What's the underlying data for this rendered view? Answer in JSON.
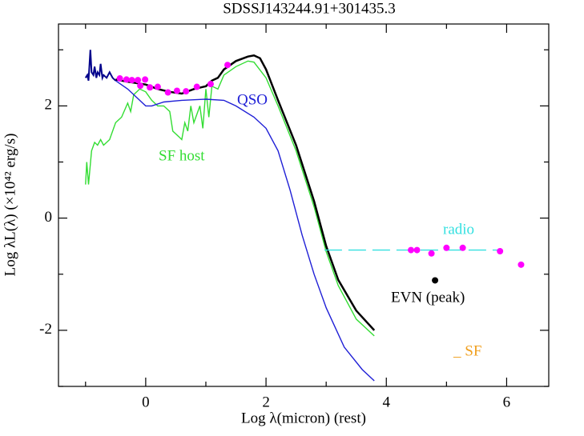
{
  "chart_data": {
    "type": "line",
    "title": "SDSSJ143244.91+301435.3",
    "x_label": "Log λ(micron) (rest)",
    "y_label": "Log λL(λ)  (×10⁴² erg/s)",
    "xlim": [
      -1.45,
      6.7
    ],
    "ylim": [
      -3.0,
      3.46
    ],
    "xticks": [
      0,
      2,
      4,
      6
    ],
    "yticks": [
      -2,
      0,
      2
    ],
    "xminorticks": [
      -1,
      1,
      3,
      5
    ],
    "yminorticks": [
      -3,
      -1,
      1,
      3
    ],
    "annotations": [
      {
        "text": "QSO",
        "color": "#1f1fd6"
      },
      {
        "text": "SF host",
        "color": "#33dd33"
      },
      {
        "text": "radio",
        "color": "#33e0e0"
      },
      {
        "text": "EVN (peak)",
        "color": "#000000"
      },
      {
        "text": "_ SF",
        "color": "#f0a020"
      }
    ],
    "series": [
      {
        "kind": "line",
        "color": "#33dd33",
        "x": [
          -1.0,
          -0.98,
          -0.95,
          -0.9,
          -0.85,
          -0.8,
          -0.75,
          -0.7,
          -0.6,
          -0.5,
          -0.4,
          -0.3,
          -0.25,
          -0.2,
          -0.1,
          0,
          0.1,
          0.2,
          0.3,
          0.4,
          0.45,
          0.55,
          0.6,
          0.65,
          0.7,
          0.75,
          0.8,
          0.9,
          0.95,
          1.0,
          1.05,
          1.1,
          1.2,
          1.3,
          1.5,
          1.7,
          1.8,
          2.0,
          2.2,
          2.5,
          2.8,
          3.0,
          3.2,
          3.5,
          3.8
        ],
        "values": [
          0.6,
          1.0,
          0.6,
          1.2,
          1.35,
          1.3,
          1.4,
          1.3,
          1.4,
          1.7,
          1.8,
          2.05,
          1.9,
          2.2,
          2.3,
          2.25,
          2.1,
          2.0,
          2.0,
          1.9,
          1.55,
          1.45,
          1.4,
          1.7,
          1.55,
          2.0,
          1.7,
          2.0,
          1.6,
          2.3,
          1.8,
          2.35,
          2.3,
          2.55,
          2.7,
          2.8,
          2.78,
          2.5,
          2.0,
          1.2,
          0.2,
          -0.6,
          -1.2,
          -1.8,
          -2.1
        ]
      },
      {
        "kind": "line",
        "color": "#1f1fd6",
        "x": [
          -0.5,
          -0.3,
          -0.1,
          0,
          0.1,
          0.3,
          0.6,
          1.0,
          1.3,
          1.5,
          1.8,
          2.0,
          2.2,
          2.4,
          2.6,
          2.8,
          3.0,
          3.3,
          3.6,
          3.8
        ],
        "values": [
          2.45,
          2.3,
          2.1,
          2.0,
          2.0,
          2.07,
          2.1,
          2.12,
          2.1,
          2.0,
          1.8,
          1.6,
          1.2,
          0.5,
          -0.3,
          -1.0,
          -1.6,
          -2.3,
          -2.7,
          -2.9
        ]
      },
      {
        "kind": "line",
        "color": "#000000",
        "width": 2.5,
        "x": [
          -0.5,
          -0.3,
          0,
          0.2,
          0.4,
          0.6,
          0.8,
          1.0,
          1.1,
          1.2,
          1.3,
          1.5,
          1.7,
          1.8,
          1.9,
          2.0,
          2.2,
          2.5,
          2.8,
          3.0,
          3.2,
          3.5,
          3.8
        ],
        "values": [
          2.47,
          2.43,
          2.38,
          2.3,
          2.25,
          2.22,
          2.3,
          2.35,
          2.45,
          2.5,
          2.65,
          2.8,
          2.88,
          2.9,
          2.85,
          2.65,
          2.1,
          1.3,
          0.3,
          -0.5,
          -1.1,
          -1.65,
          -2.0
        ]
      },
      {
        "kind": "line",
        "color": "#00008b",
        "width": 2,
        "x": [
          -1.0,
          -0.97,
          -0.95,
          -0.92,
          -0.9,
          -0.87,
          -0.85,
          -0.82,
          -0.8,
          -0.77,
          -0.75,
          -0.72,
          -0.7,
          -0.65,
          -0.6,
          -0.55,
          -0.5
        ],
        "values": [
          2.5,
          2.55,
          2.45,
          3.0,
          2.6,
          2.55,
          2.7,
          2.5,
          2.6,
          2.55,
          2.75,
          2.5,
          2.55,
          2.5,
          2.6,
          2.5,
          2.45
        ]
      },
      {
        "kind": "line",
        "color": "#33e0e0",
        "dashed": true,
        "x": [
          2.97,
          5.91
        ],
        "values": [
          -0.57,
          -0.57
        ]
      },
      {
        "kind": "scatter",
        "color": "#ff00ff",
        "x": [
          -0.43,
          -0.32,
          -0.23,
          -0.13,
          -0.09,
          -0.01,
          0.07,
          0.2,
          0.37,
          0.52,
          0.67,
          0.85,
          1.08,
          1.36,
          4.41,
          4.51,
          4.75,
          5.0,
          5.27,
          5.89,
          6.24
        ],
        "values": [
          2.49,
          2.47,
          2.46,
          2.46,
          2.36,
          2.47,
          2.33,
          2.34,
          2.24,
          2.27,
          2.26,
          2.34,
          2.39,
          2.73,
          -0.57,
          -0.57,
          -0.63,
          -0.53,
          -0.53,
          -0.59,
          -0.83
        ]
      },
      {
        "kind": "scatter",
        "color": "#000000",
        "x": [
          4.81
        ],
        "values": [
          -1.11
        ]
      }
    ]
  }
}
